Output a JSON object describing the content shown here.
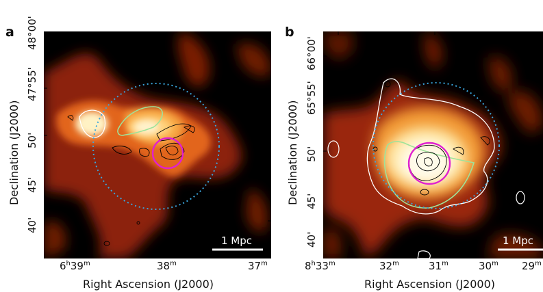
{
  "panels": [
    {
      "letter": "a",
      "x_axis_label": "Right Ascension (J2000)",
      "y_axis_label": "Declination (J2000)",
      "x_ticks": [
        {
          "h": "6",
          "hs": "h",
          "m": "39",
          "ms": "m"
        },
        {
          "h": "",
          "hs": "",
          "m": "38",
          "ms": "m"
        },
        {
          "h": "",
          "hs": "",
          "m": "37",
          "ms": "m"
        }
      ],
      "y_ticks": [
        "40'",
        "45'",
        "50'",
        "47°55'",
        "48°00'"
      ],
      "scalebar": "1 Mpc"
    },
    {
      "letter": "b",
      "x_axis_label": "Right Ascension (J2000)",
      "y_axis_label": "Declination (J2000)",
      "x_ticks": [
        {
          "h": "8",
          "hs": "h",
          "m": "33",
          "ms": "m"
        },
        {
          "h": "",
          "hs": "",
          "m": "32",
          "ms": "m"
        },
        {
          "h": "",
          "hs": "",
          "m": "31",
          "ms": "m"
        },
        {
          "h": "",
          "hs": "",
          "m": "30",
          "ms": "m"
        },
        {
          "h": "",
          "hs": "",
          "m": "29",
          "ms": "m"
        }
      ],
      "y_ticks": [
        "40'",
        "45'",
        "50'",
        "65°55'",
        "66°00'"
      ],
      "scalebar": "1 Mpc"
    }
  ],
  "colors": {
    "background": "#000000",
    "emission_hot": "#fff6cf",
    "emission_mid": "#f59a2e",
    "emission_low": "#a8280a",
    "circle_dotted": "#3aa6dd",
    "circle_magenta": "#e020d0",
    "contour_green": "#9fe39a",
    "contour_white": "#ffffff",
    "contour_black": "#000000"
  }
}
